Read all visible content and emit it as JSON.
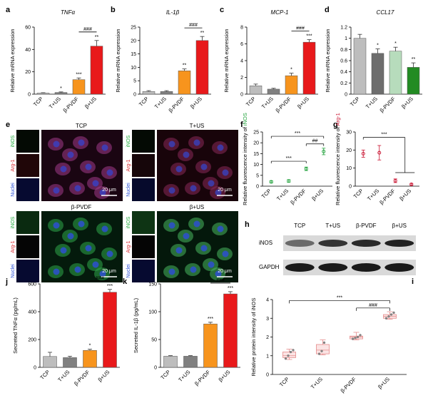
{
  "categories": [
    "TCP",
    "T+US",
    "β-PVDF",
    "β+US"
  ],
  "colors": [
    "#bdbdbd",
    "#808080",
    "#f7941d",
    "#e8191b"
  ],
  "panel_d_colors": [
    "#bdbdbd",
    "#6d6d6d",
    "#b7dcbc",
    "#228b22"
  ],
  "chart_data": [
    {
      "id": "a",
      "type": "bar",
      "title": "TNFα",
      "ylabel": "Relative mRNA expression",
      "categories": [
        "TCP",
        "T+US",
        "β-PVDF",
        "β+US"
      ],
      "values": [
        1,
        1.5,
        13,
        43
      ],
      "errors": [
        0.3,
        0.5,
        1.5,
        5
      ],
      "ylim": [
        0,
        60
      ],
      "yticks": [
        0,
        20,
        40,
        60
      ],
      "sig": [
        "",
        "*",
        "***",
        "**"
      ],
      "bracket": "###",
      "bracket_pair": [
        2,
        3
      ]
    },
    {
      "id": "b",
      "type": "bar",
      "title": "IL-1β",
      "ylabel": "Relative mRNA expression",
      "categories": [
        "TCP",
        "T+US",
        "β-PVDF",
        "β+US"
      ],
      "values": [
        1,
        1,
        8.7,
        20
      ],
      "errors": [
        0.3,
        0.3,
        0.7,
        1.5
      ],
      "ylim": [
        0,
        25
      ],
      "yticks": [
        0,
        5,
        10,
        15,
        20,
        25
      ],
      "sig": [
        "",
        "",
        "**",
        "**"
      ],
      "bracket": "###",
      "bracket_pair": [
        2,
        3
      ]
    },
    {
      "id": "c",
      "type": "bar",
      "title": "MCP-1",
      "ylabel": "Relative mRNA expression",
      "categories": [
        "TCP",
        "T+US",
        "β-PVDF",
        "β+US"
      ],
      "values": [
        1,
        0.6,
        2.2,
        6.2
      ],
      "errors": [
        0.2,
        0.1,
        0.3,
        0.3
      ],
      "ylim": [
        0,
        8
      ],
      "yticks": [
        0,
        2,
        4,
        6,
        8
      ],
      "sig": [
        "",
        "",
        "*",
        "***"
      ],
      "bracket": "###",
      "bracket_pair": [
        2,
        3
      ]
    },
    {
      "id": "d",
      "type": "bar",
      "title": "CCL17",
      "ylabel": "Relative mRNA expression",
      "categories": [
        "TCP",
        "T+US",
        "β-PVDF",
        "β+US"
      ],
      "values": [
        1.0,
        0.73,
        0.77,
        0.48
      ],
      "errors": [
        0.07,
        0.08,
        0.07,
        0.08
      ],
      "ylim": [
        0,
        1.2
      ],
      "yticks": [
        0,
        0.2,
        0.4,
        0.6,
        0.8,
        1.0,
        1.2
      ],
      "sig": [
        "",
        "*",
        "*",
        "**"
      ],
      "bracket": "",
      "bracket_pair": []
    },
    {
      "id": "f",
      "type": "scatter",
      "ylabel_prefix": "Relative fluorescence intensity of ",
      "ylabel_marker": "iNOS",
      "categories": [
        "TCP",
        "T+US",
        "β-PVDF",
        "β+US"
      ],
      "values": [
        2,
        2.4,
        8,
        16
      ],
      "errors": [
        0.5,
        0.6,
        0.8,
        1.5
      ],
      "ylim": [
        0,
        25
      ],
      "yticks": [
        0,
        5,
        10,
        15,
        20,
        25
      ],
      "brackets": [
        {
          "from": 0,
          "to": 2,
          "label": "***"
        },
        {
          "from": 2,
          "to": 3,
          "label": "##"
        },
        {
          "from": 0,
          "to": 3,
          "label": "***"
        }
      ]
    },
    {
      "id": "g",
      "type": "scatter",
      "ylabel_prefix": "Relative fluorescence intensity of ",
      "ylabel_marker": "Arg-1",
      "categories": [
        "TCP",
        "T+US",
        "β-PVDF",
        "β+US"
      ],
      "values": [
        18,
        18.5,
        3,
        1
      ],
      "errors": [
        2,
        4,
        1,
        0.5
      ],
      "ylim": [
        0,
        30
      ],
      "yticks": [
        0,
        10,
        20,
        30
      ],
      "bracket_label": "***"
    },
    {
      "id": "i",
      "type": "box",
      "ylabel": "Relative protein intensity of iNOS",
      "categories": [
        "TCP",
        "T+US",
        "β-PVDF",
        "β+US"
      ],
      "boxes": [
        {
          "q1": 0.9,
          "median": 1.0,
          "q3": 1.2,
          "min": 0.8,
          "max": 1.35,
          "points": [
            0.85,
            1.0,
            1.2,
            1.3
          ]
        },
        {
          "q1": 1.1,
          "median": 1.3,
          "q3": 1.6,
          "min": 1.05,
          "max": 1.85,
          "points": [
            1.1,
            1.25,
            1.7
          ]
        },
        {
          "q1": 1.9,
          "median": 2.0,
          "q3": 2.05,
          "min": 1.85,
          "max": 2.25,
          "points": [
            1.9,
            1.95,
            2.0,
            2.1
          ]
        },
        {
          "q1": 3.0,
          "median": 3.1,
          "q3": 3.2,
          "min": 2.95,
          "max": 3.35,
          "points": [
            3.0,
            3.1,
            3.2,
            3.3
          ]
        }
      ],
      "ylim": [
        0,
        4
      ],
      "yticks": [
        0,
        1,
        2,
        3,
        4
      ],
      "brackets": [
        {
          "from": 2,
          "to": 3,
          "label": "###"
        },
        {
          "from": 0,
          "to": 3,
          "label": "***"
        }
      ]
    },
    {
      "id": "j",
      "type": "bar",
      "ylabel": "Secreted TNFα (pg/mL)",
      "categories": [
        "TCP",
        "T+US",
        "β-PVDF",
        "β+US"
      ],
      "values": [
        78,
        70,
        122,
        540
      ],
      "errors": [
        30,
        10,
        8,
        20
      ],
      "ylim": [
        0,
        600
      ],
      "yticks": [
        0,
        200,
        400,
        600
      ],
      "sig": [
        "",
        "",
        "*",
        "***"
      ],
      "bracket": "###",
      "bracket_pair": [
        2,
        3
      ]
    },
    {
      "id": "k",
      "type": "bar",
      "ylabel": "Secreted IL-1β (pg/mL)",
      "categories": [
        "TCP",
        "T+US",
        "β-PVDF",
        "β+US"
      ],
      "values": [
        20,
        20,
        78,
        132
      ],
      "errors": [
        1,
        1,
        3,
        4
      ],
      "ylim": [
        0,
        150
      ],
      "yticks": [
        0,
        50,
        100,
        150
      ],
      "sig": [
        "",
        "",
        "***",
        "***"
      ],
      "bracket": "###",
      "bracket_pair": [
        2,
        3
      ]
    }
  ],
  "panel_e": {
    "label": "e",
    "groups": [
      {
        "title": "TCP",
        "channels": [
          "iNOS",
          "Arg-1",
          "Nuclei"
        ],
        "scalebar": "20 μm"
      },
      {
        "title": "T+US",
        "channels": [
          "iNOS",
          "Arg-1",
          "Nuclei"
        ],
        "scalebar": "20 μm"
      },
      {
        "title": "β-PVDF",
        "channels": [
          "iNOS",
          "Arg-1",
          "Nuclei"
        ],
        "scalebar": "20 μm"
      },
      {
        "title": "β+US",
        "channels": [
          "iNOS",
          "Arg-1",
          "Nuclei"
        ],
        "scalebar": "20 μm"
      }
    ]
  },
  "panel_h": {
    "label": "h",
    "lanes": [
      "TCP",
      "T+US",
      "β-PVDF",
      "β+US"
    ],
    "rows": [
      "iNOS",
      "GAPDH"
    ]
  },
  "labels": {
    "a": "a",
    "b": "b",
    "c": "c",
    "d": "d",
    "f": "f",
    "g": "g",
    "i": "i",
    "j": "j",
    "k": "k"
  }
}
